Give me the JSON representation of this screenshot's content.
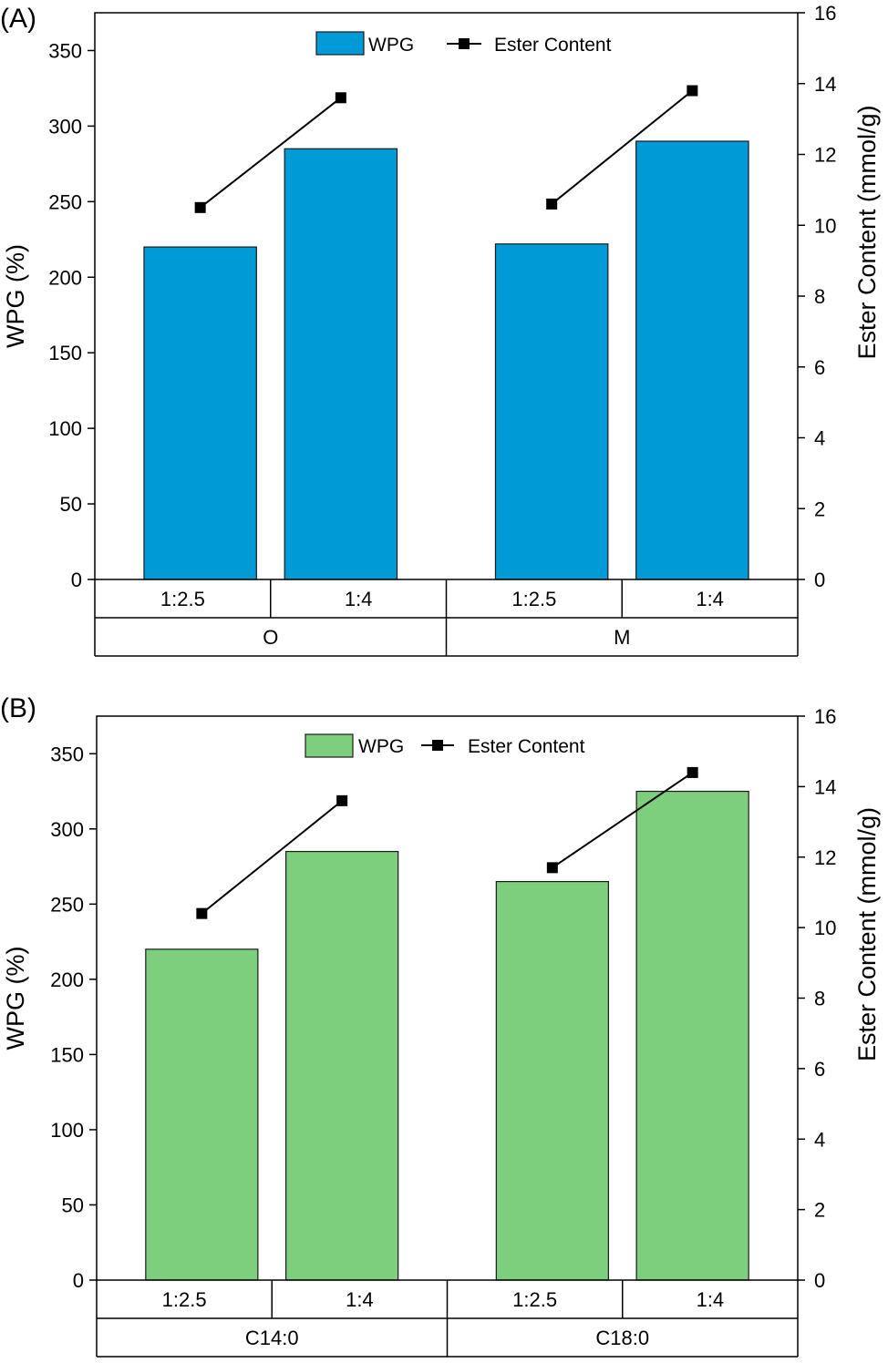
{
  "chart_data": [
    {
      "type": "bar",
      "panel_label": "(A)",
      "bar_color": "#009bd6",
      "groups": [
        {
          "label": "O",
          "categories": [
            "1:2.5",
            "1:4"
          ]
        },
        {
          "label": "M",
          "categories": [
            "1:2.5",
            "1:4"
          ]
        }
      ],
      "series": [
        {
          "name": "WPG",
          "type": "bar",
          "axis": "left",
          "values": [
            220,
            285,
            222,
            290
          ]
        },
        {
          "name": "Ester Content",
          "type": "line",
          "axis": "right",
          "values": [
            10.5,
            13.6,
            10.6,
            13.8
          ]
        }
      ],
      "ylabel": "WPG (%)",
      "ylabel_right": "Ester Content (mmol/g)",
      "ylim": [
        0,
        375
      ],
      "ylim_right": [
        0,
        16
      ],
      "yticks": [
        "0",
        "50",
        "100",
        "150",
        "200",
        "250",
        "300",
        "350"
      ],
      "yticks_right": [
        "0",
        "2",
        "4",
        "6",
        "8",
        "10",
        "12",
        "14",
        "16"
      ],
      "legend": [
        "WPG",
        "Ester Content"
      ]
    },
    {
      "type": "bar",
      "panel_label": "(B)",
      "bar_color": "#7dcf7d",
      "groups": [
        {
          "label": "C14:0",
          "categories": [
            "1:2.5",
            "1:4"
          ]
        },
        {
          "label": "C18:0",
          "categories": [
            "1:2.5",
            "1:4"
          ]
        }
      ],
      "series": [
        {
          "name": "WPG",
          "type": "bar",
          "axis": "left",
          "values": [
            220,
            285,
            265,
            325
          ]
        },
        {
          "name": "Ester Content",
          "type": "line",
          "axis": "right",
          "values": [
            10.4,
            13.6,
            11.7,
            14.4
          ]
        }
      ],
      "ylabel": "WPG (%)",
      "ylabel_right": "Ester Content (mmol/g)",
      "ylim": [
        0,
        375
      ],
      "ylim_right": [
        0,
        16
      ],
      "yticks": [
        "0",
        "50",
        "100",
        "150",
        "200",
        "250",
        "300",
        "350"
      ],
      "yticks_right": [
        "0",
        "2",
        "4",
        "6",
        "8",
        "10",
        "12",
        "14",
        "16"
      ],
      "legend": [
        "WPG",
        "Ester Content"
      ]
    }
  ]
}
